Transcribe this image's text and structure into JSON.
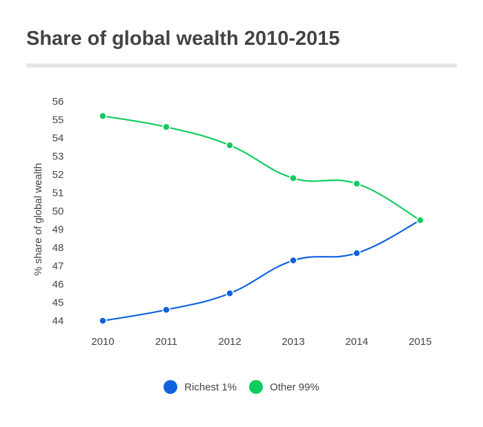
{
  "title": "Share of global wealth 2010-2015",
  "chart_data": {
    "type": "line",
    "title": "Share of global wealth 2010-2015",
    "xlabel": "",
    "ylabel": "% share of global wealth",
    "categories": [
      "2010",
      "2011",
      "2012",
      "2013",
      "2014",
      "2015"
    ],
    "yticks": [
      44,
      45,
      46,
      47,
      48,
      49,
      50,
      51,
      52,
      53,
      54,
      55,
      56
    ],
    "ylim": [
      44,
      56
    ],
    "grid": false,
    "legend": "bottom",
    "series": [
      {
        "name": "Richest 1%",
        "color": "#0e62e0",
        "values": [
          44.0,
          44.6,
          45.5,
          47.3,
          47.7,
          49.5
        ]
      },
      {
        "name": "Other 99%",
        "color": "#0fcc5d",
        "values": [
          55.2,
          54.6,
          53.6,
          51.8,
          51.5,
          49.5
        ]
      }
    ]
  }
}
